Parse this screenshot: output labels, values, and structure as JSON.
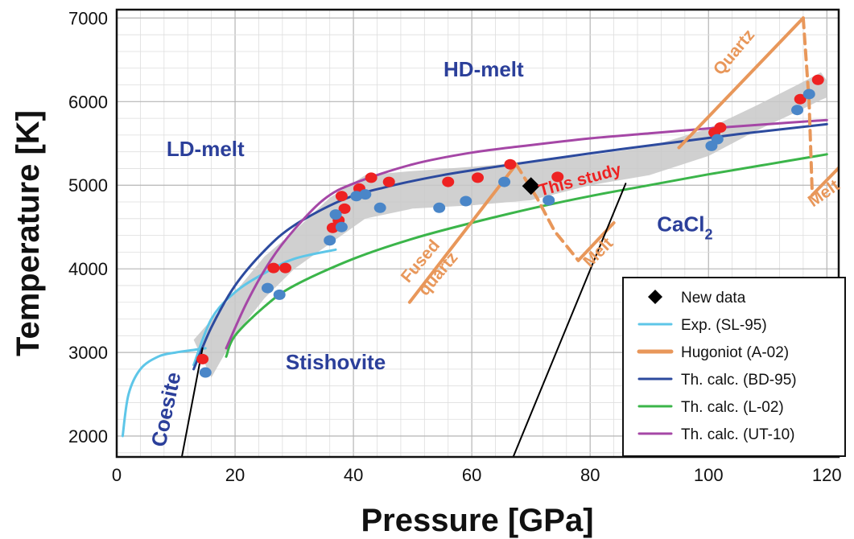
{
  "chart_data": {
    "type": "scatter",
    "xlabel": "Pressure [GPa]",
    "ylabel": "Temperature [K]",
    "xlim": [
      0,
      122
    ],
    "ylim": [
      1750,
      7100
    ],
    "xticks": [
      0,
      20,
      40,
      60,
      80,
      100,
      120
    ],
    "yticks": [
      2000,
      3000,
      4000,
      5000,
      6000,
      7000
    ],
    "grid": true,
    "legend_position": "bottom-right",
    "colors": {
      "exp_sl95": "#5ec6e8",
      "hugoniot_a02": "#e8975a",
      "bd95": "#2c4a9e",
      "l02": "#3bb54a",
      "ut10": "#a547a6",
      "red_points": "#ee2222",
      "blue_points": "#4a86c8",
      "band": "#c8c8c8",
      "phase_boundary": "#000000",
      "region_text": "#2b3f9a",
      "annotation_orange": "#e8975a",
      "annotation_red": "#ee2222"
    },
    "legend": [
      {
        "label": "New data",
        "marker": "diamond",
        "color": "#000000"
      },
      {
        "label": "Exp. (SL-95)",
        "marker": "line",
        "color": "#5ec6e8"
      },
      {
        "label": "Hugoniot (A-02)",
        "marker": "thickline",
        "color": "#e8975a"
      },
      {
        "label": "Th. calc. (BD-95)",
        "marker": "line",
        "color": "#2c4a9e"
      },
      {
        "label": "Th. calc. (L-02)",
        "marker": "line",
        "color": "#3bb54a"
      },
      {
        "label": "Th. calc. (UT-10)",
        "marker": "line",
        "color": "#a547a6"
      }
    ],
    "regions": [
      {
        "label": "HD-melt",
        "x": 62,
        "y": 6300
      },
      {
        "label": "LD-melt",
        "x": 15,
        "y": 5350
      },
      {
        "label": "CaCl",
        "sub": "2",
        "x": 96,
        "y": 4450
      },
      {
        "label": "Stishovite",
        "x": 37,
        "y": 2800
      },
      {
        "label": "Coesite",
        "x": 9.5,
        "y": 2300,
        "rotate": -78
      }
    ],
    "annotations": [
      {
        "text": "Quartz",
        "x": 105,
        "y": 6550,
        "rotate": -50,
        "color": "#e8975a"
      },
      {
        "text": "Fused",
        "x": 52,
        "y": 4050,
        "rotate": -50,
        "color": "#e8975a"
      },
      {
        "text": "quartz",
        "x": 55,
        "y": 3900,
        "rotate": -50,
        "color": "#e8975a"
      },
      {
        "text": "Melt",
        "x": 82,
        "y": 4150,
        "rotate": -45,
        "color": "#e8975a"
      },
      {
        "text": "Melt",
        "x": 120,
        "y": 4850,
        "rotate": -35,
        "color": "#e8975a"
      },
      {
        "text": "This study",
        "x": 78.5,
        "y": 5000,
        "rotate": -15,
        "color": "#ee2222"
      }
    ],
    "series": [
      {
        "name": "Exp. (SL-95)",
        "kind": "line",
        "color": "#5ec6e8",
        "x": [
          1,
          2,
          4,
          7,
          10,
          13,
          15
        ],
        "y": [
          2000,
          2500,
          2800,
          2950,
          3000,
          3030,
          3050
        ]
      },
      {
        "name": "Exp. (SL-95)",
        "kind": "line",
        "color": "#5ec6e8",
        "x": [
          13,
          16,
          20,
          25,
          30,
          37
        ],
        "y": [
          2850,
          3400,
          3720,
          3950,
          4120,
          4230
        ]
      },
      {
        "name": "Th. calc. (BD-95)",
        "kind": "line",
        "color": "#2c4a9e",
        "x": [
          13,
          16,
          20,
          25,
          30,
          38,
          45,
          55,
          65,
          75,
          85,
          95,
          105,
          120
        ],
        "y": [
          2800,
          3300,
          3800,
          4220,
          4520,
          4820,
          4970,
          5120,
          5230,
          5330,
          5430,
          5520,
          5610,
          5730
        ]
      },
      {
        "name": "Th. calc. (L-02)",
        "kind": "line",
        "color": "#3bb54a",
        "x": [
          18.5,
          20,
          25,
          30,
          40,
          50,
          60,
          70,
          80,
          90,
          100,
          110,
          120
        ],
        "y": [
          2950,
          3200,
          3550,
          3800,
          4120,
          4360,
          4550,
          4720,
          4870,
          5000,
          5130,
          5250,
          5370
        ]
      },
      {
        "name": "Th. calc. (UT-10)",
        "kind": "line",
        "color": "#a547a6",
        "x": [
          18.5,
          22,
          26,
          30,
          35,
          40,
          50,
          60,
          70,
          80,
          90,
          100,
          110,
          120
        ],
        "y": [
          3050,
          3600,
          4100,
          4470,
          4830,
          5020,
          5250,
          5390,
          5480,
          5560,
          5620,
          5680,
          5730,
          5780
        ]
      },
      {
        "name": "Hugoniot (A-02)",
        "kind": "line",
        "color": "#e8975a",
        "dashed": false,
        "x": [
          95,
          116
        ],
        "y": [
          5450,
          7000
        ]
      },
      {
        "name": "Hugoniot (A-02)",
        "kind": "line",
        "color": "#e8975a",
        "dashed": true,
        "x": [
          116,
          117,
          117.5
        ],
        "y": [
          7000,
          6000,
          4950
        ]
      },
      {
        "name": "Hugoniot (A-02)",
        "kind": "line",
        "color": "#e8975a",
        "dashed": false,
        "x": [
          117.5,
          123
        ],
        "y": [
          4880,
          5280
        ]
      },
      {
        "name": "Hugoniot (A-02)",
        "kind": "line",
        "color": "#e8975a",
        "dashed": false,
        "x": [
          49.5,
          67.5
        ],
        "y": [
          3600,
          5250
        ]
      },
      {
        "name": "Hugoniot (A-02)",
        "kind": "line",
        "color": "#e8975a",
        "dashed": true,
        "x": [
          67.5,
          71,
          74,
          78
        ],
        "y": [
          5250,
          4850,
          4450,
          4100
        ]
      },
      {
        "name": "Hugoniot (A-02)",
        "kind": "line",
        "color": "#e8975a",
        "dashed": false,
        "x": [
          78,
          84
        ],
        "y": [
          4100,
          4550
        ]
      },
      {
        "name": "Phase boundary",
        "kind": "line",
        "color": "#000000",
        "x": [
          11,
          14.5
        ],
        "y": [
          1750,
          3050
        ]
      },
      {
        "name": "Phase boundary",
        "kind": "line",
        "color": "#000000",
        "x": [
          67,
          86
        ],
        "y": [
          1750,
          5020
        ]
      },
      {
        "name": "Red points",
        "kind": "points",
        "color": "#ee2222",
        "x": [
          14.5,
          26.5,
          28.5,
          36.5,
          37.5,
          38,
          38.5,
          41,
          43,
          46,
          56,
          61,
          66.5,
          74.5,
          101,
          102,
          115.5,
          118.5
        ],
        "y": [
          2920,
          4010,
          4010,
          4490,
          4580,
          4870,
          4720,
          4960,
          5090,
          5040,
          5040,
          5090,
          5250,
          5100,
          5630,
          5690,
          6030,
          6260
        ]
      },
      {
        "name": "Blue points",
        "kind": "points",
        "color": "#4a86c8",
        "x": [
          15,
          25.5,
          27.5,
          36,
          37,
          38,
          40.5,
          42,
          44.5,
          54.5,
          59,
          65.5,
          73,
          100.5,
          101.5,
          115,
          117
        ],
        "y": [
          2760,
          3770,
          3690,
          4340,
          4650,
          4500,
          4870,
          4890,
          4730,
          4730,
          4810,
          5040,
          4820,
          5470,
          5550,
          5900,
          6090
        ]
      },
      {
        "name": "New data",
        "kind": "diamond",
        "color": "#000000",
        "x": [
          70
        ],
        "y": [
          4990
        ]
      }
    ],
    "band": {
      "upper": {
        "x": [
          13,
          18,
          25,
          30,
          36,
          42,
          50,
          60,
          70,
          80,
          90,
          100,
          108,
          115,
          119,
          120
        ],
        "y": [
          3150,
          3550,
          4150,
          4450,
          4850,
          5120,
          5170,
          5220,
          5280,
          5360,
          5460,
          5680,
          5950,
          6200,
          6350,
          6250
        ]
      },
      "lower": {
        "x": [
          16,
          20,
          25,
          30,
          36,
          42,
          50,
          60,
          70,
          80,
          90,
          100,
          108,
          115,
          119,
          120
        ],
        "y": [
          2700,
          3200,
          3650,
          4000,
          4300,
          4600,
          4720,
          4760,
          4820,
          5000,
          5120,
          5350,
          5650,
          5880,
          6020,
          6050
        ]
      }
    }
  }
}
